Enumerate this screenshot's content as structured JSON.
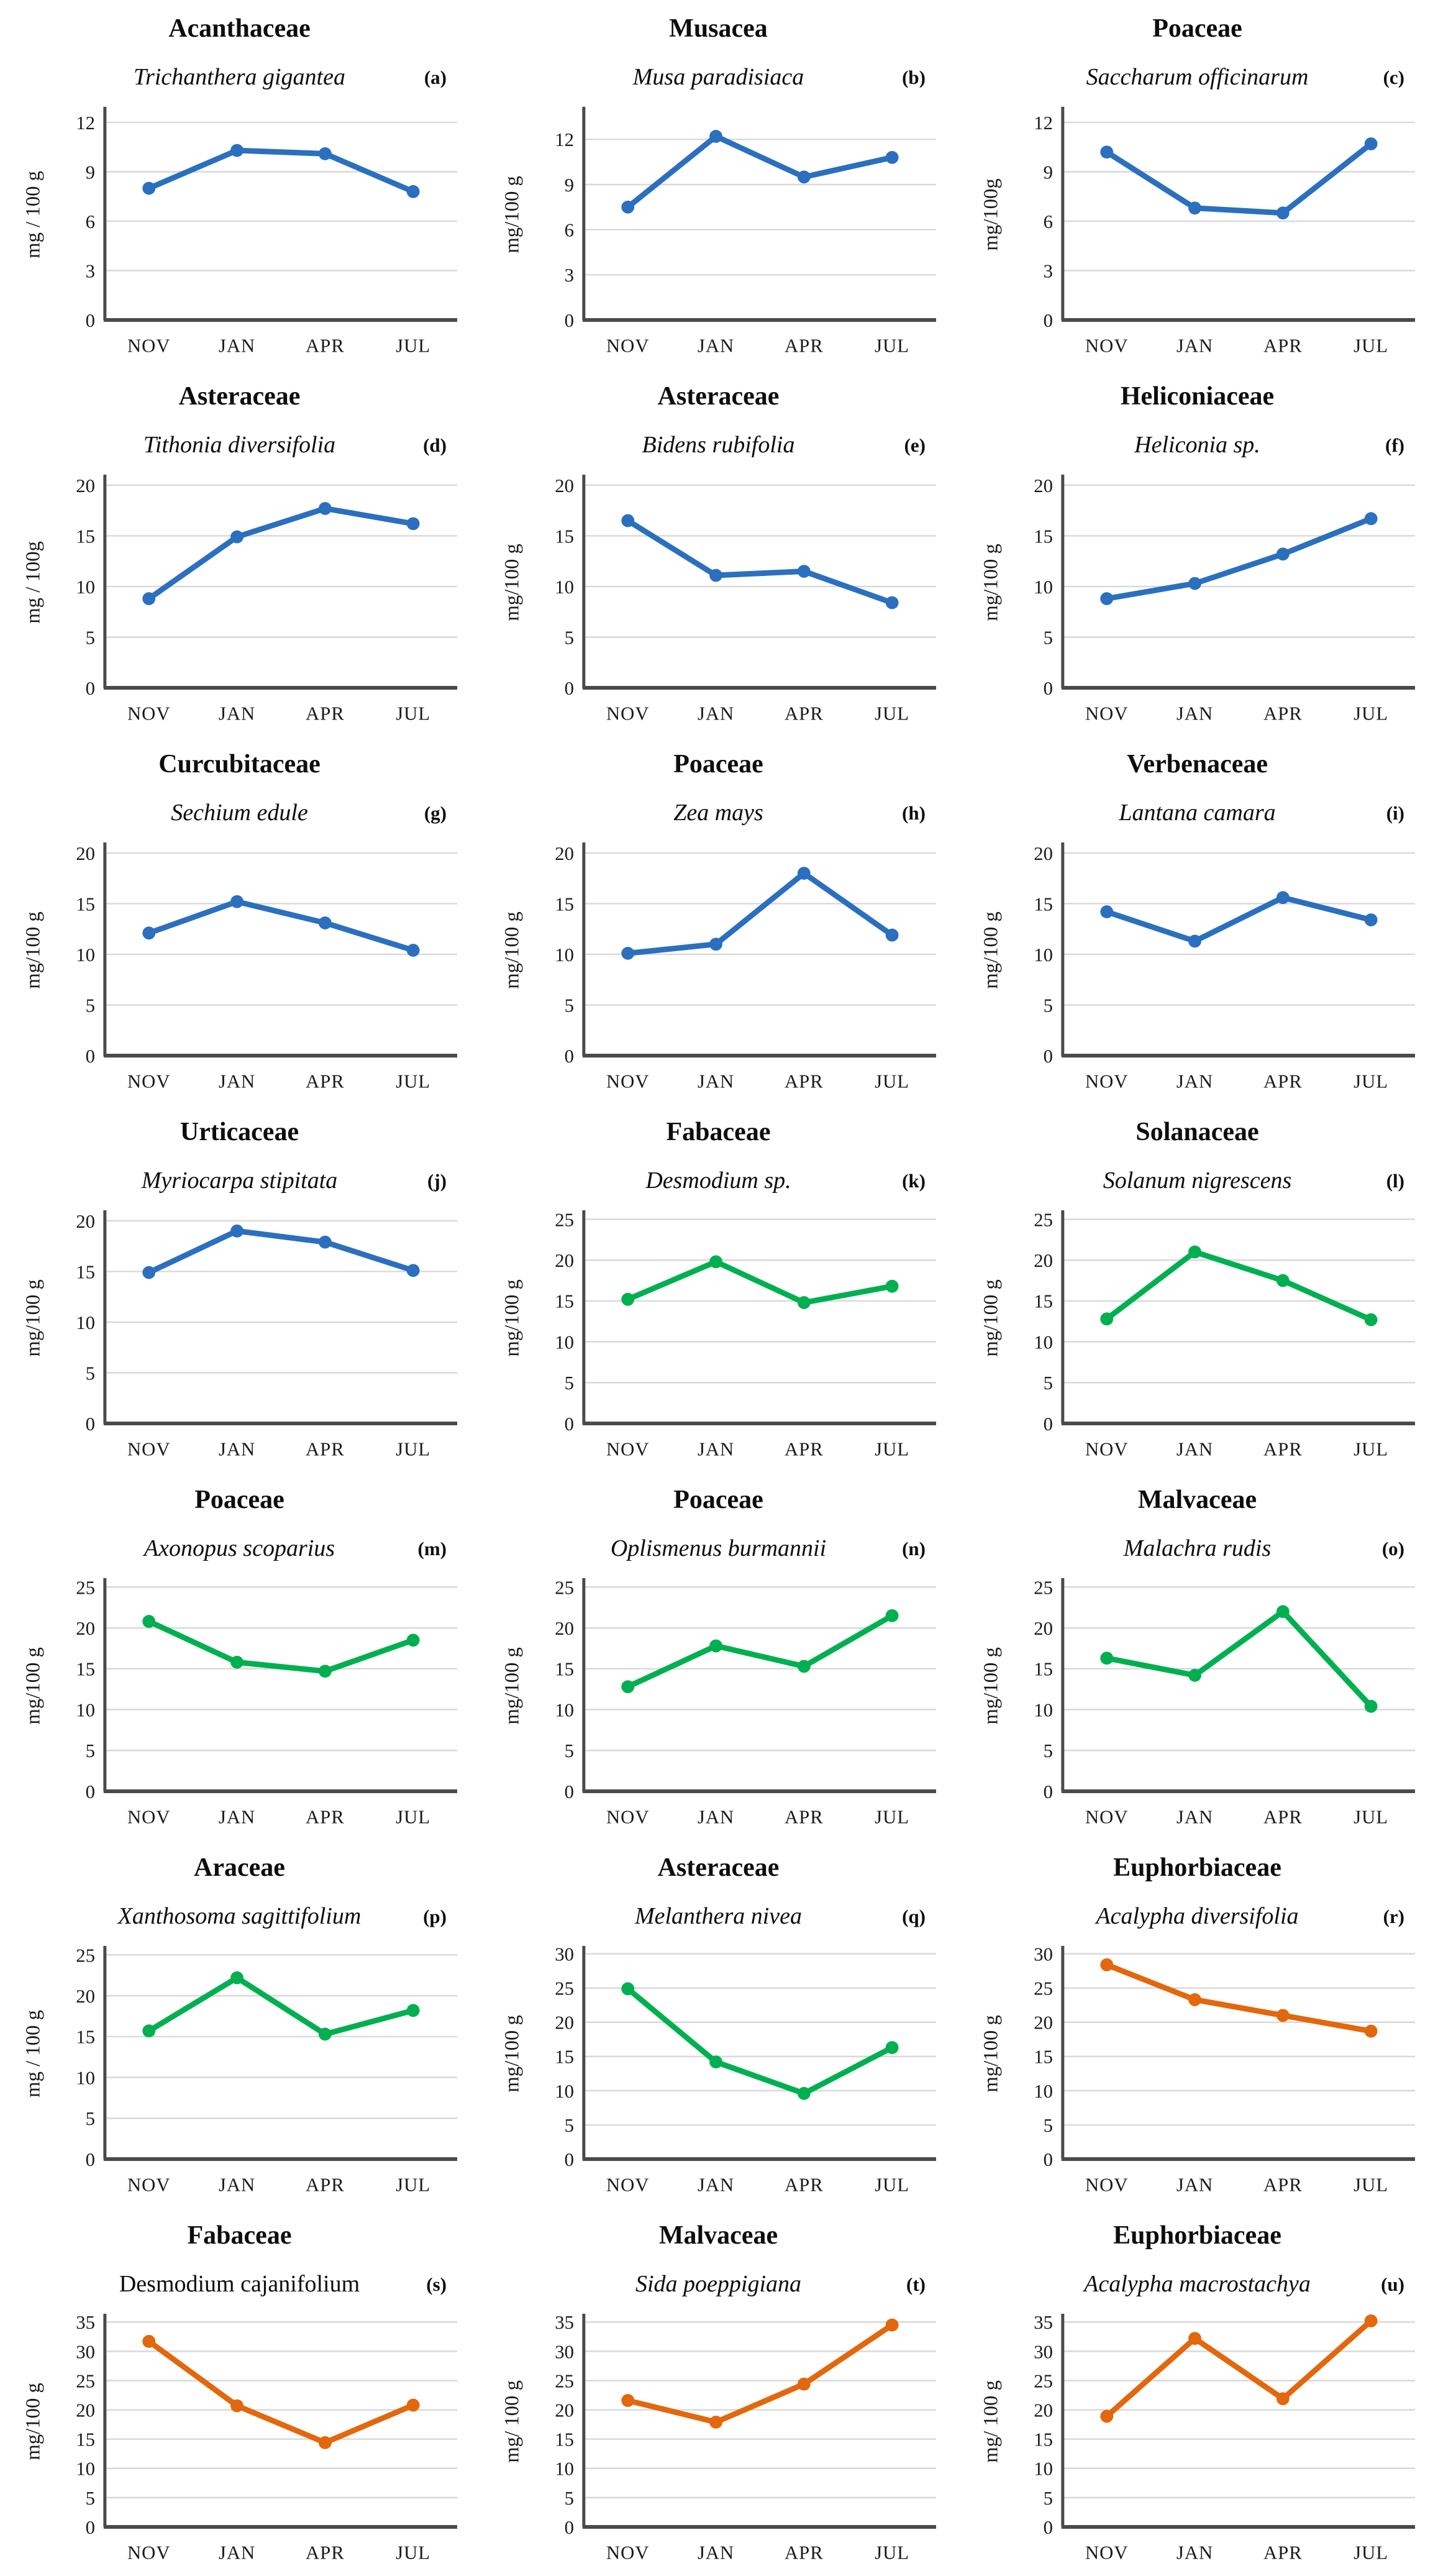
{
  "figure": {
    "x_categories": [
      "NOV",
      "JAN",
      "APR",
      "JUL"
    ],
    "palette": {
      "blue": "#2b6fbf",
      "green": "#00b050",
      "orange": "#e3670c"
    },
    "gridline_color": "#d9d9d9",
    "axis_color": "#4a4a4a"
  },
  "chart_data": [
    {
      "type": "line",
      "label": "(a)",
      "family": "Acanthaceae",
      "species": "Trichanthera gigantea",
      "species_italic": true,
      "ylabel": "mg / 100 g",
      "color": "blue",
      "categories": [
        "NOV",
        "JAN",
        "APR",
        "JUL"
      ],
      "values": [
        8.0,
        10.3,
        10.1,
        7.8
      ],
      "yticks": [
        0,
        3,
        6,
        9,
        12
      ],
      "ylim": [
        0,
        12.8
      ],
      "grid": true,
      "legend": "none"
    },
    {
      "type": "line",
      "label": "(b)",
      "family": "Musacea",
      "species": "Musa paradisiaca",
      "species_italic": true,
      "ylabel": "mg/100 g",
      "color": "blue",
      "categories": [
        "NOV",
        "JAN",
        "APR",
        "JUL"
      ],
      "values": [
        7.5,
        12.2,
        9.5,
        10.8
      ],
      "yticks": [
        0,
        3,
        6,
        9,
        12
      ],
      "ylim": [
        0,
        14
      ],
      "grid": true,
      "legend": "none"
    },
    {
      "type": "line",
      "label": "(c)",
      "family": "Poaceae",
      "species": "Saccharum officinarum",
      "species_italic": true,
      "ylabel": "mg/100g",
      "color": "blue",
      "categories": [
        "NOV",
        "JAN",
        "APR",
        "JUL"
      ],
      "values": [
        10.2,
        6.8,
        6.5,
        10.7
      ],
      "yticks": [
        0,
        3,
        6,
        9,
        12
      ],
      "ylim": [
        0,
        12.8
      ],
      "grid": true,
      "legend": "none"
    },
    {
      "type": "line",
      "label": "(d)",
      "family": "Asteraceae",
      "species": "Tithonia diversifolia",
      "species_italic": true,
      "ylabel": "mg / 100g",
      "color": "blue",
      "categories": [
        "NOV",
        "JAN",
        "APR",
        "JUL"
      ],
      "values": [
        8.8,
        14.9,
        17.7,
        16.2
      ],
      "yticks": [
        0,
        5,
        10,
        15,
        20
      ],
      "ylim": [
        0,
        20.8
      ],
      "grid": true,
      "legend": "none"
    },
    {
      "type": "line",
      "label": "(e)",
      "family": "Asteraceae",
      "species": "Bidens rubifolia",
      "species_italic": true,
      "ylabel": "mg/100 g",
      "color": "blue",
      "categories": [
        "NOV",
        "JAN",
        "APR",
        "JUL"
      ],
      "values": [
        16.5,
        11.1,
        11.5,
        8.4
      ],
      "yticks": [
        0,
        5,
        10,
        15,
        20
      ],
      "ylim": [
        0,
        20.8
      ],
      "grid": true,
      "legend": "none"
    },
    {
      "type": "line",
      "label": "(f)",
      "family": "Heliconiaceae",
      "species": "Heliconia sp.",
      "species_italic": true,
      "ylabel": "mg/100 g",
      "color": "blue",
      "categories": [
        "NOV",
        "JAN",
        "APR",
        "JUL"
      ],
      "values": [
        8.8,
        10.3,
        13.2,
        16.7
      ],
      "yticks": [
        0,
        5,
        10,
        15,
        20
      ],
      "ylim": [
        0,
        20.8
      ],
      "grid": true,
      "legend": "none"
    },
    {
      "type": "line",
      "label": "(g)",
      "family": "Curcubitaceae",
      "species": "Sechium edule",
      "species_italic": true,
      "ylabel": "mg/100 g",
      "color": "blue",
      "categories": [
        "NOV",
        "JAN",
        "APR",
        "JUL"
      ],
      "values": [
        12.1,
        15.2,
        13.1,
        10.4
      ],
      "yticks": [
        0,
        5,
        10,
        15,
        20
      ],
      "ylim": [
        0,
        20.8
      ],
      "grid": true,
      "legend": "none"
    },
    {
      "type": "line",
      "label": "(h)",
      "family": "Poaceae",
      "species": "Zea mays",
      "species_italic": true,
      "ylabel": "mg/100 g",
      "color": "blue",
      "categories": [
        "NOV",
        "JAN",
        "APR",
        "JUL"
      ],
      "values": [
        10.1,
        11.0,
        18.0,
        11.9
      ],
      "yticks": [
        0,
        5,
        10,
        15,
        20
      ],
      "ylim": [
        0,
        20.8
      ],
      "grid": true,
      "legend": "none"
    },
    {
      "type": "line",
      "label": "(i)",
      "family": "Verbenaceae",
      "species": "Lantana camara",
      "species_italic": true,
      "ylabel": "mg/100 g",
      "color": "blue",
      "categories": [
        "NOV",
        "JAN",
        "APR",
        "JUL"
      ],
      "values": [
        14.2,
        11.3,
        15.6,
        13.4
      ],
      "yticks": [
        0,
        5,
        10,
        15,
        20
      ],
      "ylim": [
        0,
        20.8
      ],
      "grid": true,
      "legend": "none"
    },
    {
      "type": "line",
      "label": "(j)",
      "family": "Urticaceae",
      "species": "Myriocarpa stipitata",
      "species_italic": true,
      "ylabel": "mg/100 g",
      "color": "blue",
      "categories": [
        "NOV",
        "JAN",
        "APR",
        "JUL"
      ],
      "values": [
        14.9,
        19.0,
        17.9,
        15.1
      ],
      "yticks": [
        0,
        5,
        10,
        15,
        20
      ],
      "ylim": [
        0,
        20.8
      ],
      "grid": true,
      "legend": "none"
    },
    {
      "type": "line",
      "label": "(k)",
      "family": "Fabaceae",
      "species": "Desmodium sp.",
      "species_italic": true,
      "ylabel": "mg/100 g",
      "color": "green",
      "categories": [
        "NOV",
        "JAN",
        "APR",
        "JUL"
      ],
      "values": [
        15.2,
        19.8,
        14.8,
        16.8
      ],
      "yticks": [
        0,
        5,
        10,
        15,
        20,
        25
      ],
      "ylim": [
        0,
        25.8
      ],
      "grid": true,
      "legend": "none"
    },
    {
      "type": "line",
      "label": "(l)",
      "family": "Solanaceae",
      "species": "Solanum nigrescens",
      "species_italic": true,
      "ylabel": "mg/100 g",
      "color": "green",
      "categories": [
        "NOV",
        "JAN",
        "APR",
        "JUL"
      ],
      "values": [
        12.8,
        21.0,
        17.5,
        12.7
      ],
      "yticks": [
        0,
        5,
        10,
        15,
        20,
        25
      ],
      "ylim": [
        0,
        25.8
      ],
      "grid": true,
      "legend": "none"
    },
    {
      "type": "line",
      "label": "(m)",
      "family": "Poaceae",
      "species": "Axonopus scoparius",
      "species_italic": true,
      "ylabel": "mg/100 g",
      "color": "green",
      "categories": [
        "NOV",
        "JAN",
        "APR",
        "JUL"
      ],
      "values": [
        20.8,
        15.8,
        14.7,
        18.5
      ],
      "yticks": [
        0,
        5,
        10,
        15,
        20,
        25
      ],
      "ylim": [
        0,
        25.8
      ],
      "grid": true,
      "legend": "none"
    },
    {
      "type": "line",
      "label": "(n)",
      "family": "Poaceae",
      "species": "Oplismenus burmannii",
      "species_italic": true,
      "ylabel": "mg/100 g",
      "color": "green",
      "categories": [
        "NOV",
        "JAN",
        "APR",
        "JUL"
      ],
      "values": [
        12.8,
        17.8,
        15.3,
        21.5
      ],
      "yticks": [
        0,
        5,
        10,
        15,
        20,
        25
      ],
      "ylim": [
        0,
        25.8
      ],
      "grid": true,
      "legend": "none"
    },
    {
      "type": "line",
      "label": "(o)",
      "family": "Malvaceae",
      "species": "Malachra rudis",
      "species_italic": true,
      "ylabel": "mg/100 g",
      "color": "green",
      "categories": [
        "NOV",
        "JAN",
        "APR",
        "JUL"
      ],
      "values": [
        16.3,
        14.2,
        22.0,
        10.4
      ],
      "yticks": [
        0,
        5,
        10,
        15,
        20,
        25
      ],
      "ylim": [
        0,
        25.8
      ],
      "grid": true,
      "legend": "none"
    },
    {
      "type": "line",
      "label": "(p)",
      "family": "Araceae",
      "species": "Xanthosoma sagittifolium",
      "species_italic": true,
      "ylabel": "mg / 100 g",
      "color": "green",
      "categories": [
        "NOV",
        "JAN",
        "APR",
        "JUL"
      ],
      "values": [
        15.7,
        22.2,
        15.3,
        18.2
      ],
      "yticks": [
        0,
        5,
        10,
        15,
        20,
        25
      ],
      "ylim": [
        0,
        25.8
      ],
      "grid": true,
      "legend": "none"
    },
    {
      "type": "line",
      "label": "(q)",
      "family": "Asteraceae",
      "species": "Melanthera nivea",
      "species_italic": true,
      "ylabel": "mg/100 g",
      "color": "green",
      "categories": [
        "NOV",
        "JAN",
        "APR",
        "JUL"
      ],
      "values": [
        24.9,
        14.2,
        9.6,
        16.3
      ],
      "yticks": [
        0,
        5,
        10,
        15,
        20,
        25,
        30
      ],
      "ylim": [
        0,
        30.8
      ],
      "grid": true,
      "legend": "none"
    },
    {
      "type": "line",
      "label": "(r)",
      "family": "Euphorbiaceae",
      "species": "Acalypha diversifolia",
      "species_italic": true,
      "ylabel": "mg/100 g",
      "color": "orange",
      "categories": [
        "NOV",
        "JAN",
        "APR",
        "JUL"
      ],
      "values": [
        28.4,
        23.3,
        21.0,
        18.7
      ],
      "yticks": [
        0,
        5,
        10,
        15,
        20,
        25,
        30
      ],
      "ylim": [
        0,
        30.8
      ],
      "grid": true,
      "legend": "none"
    },
    {
      "type": "line",
      "label": "(s)",
      "family": "Fabaceae",
      "species": "Desmodium cajanifolium",
      "species_italic": false,
      "ylabel": "mg/100 g",
      "color": "orange",
      "categories": [
        "NOV",
        "JAN",
        "APR",
        "JUL"
      ],
      "values": [
        31.7,
        20.7,
        14.4,
        20.8
      ],
      "yticks": [
        0,
        5,
        10,
        15,
        20,
        25,
        30,
        35
      ],
      "ylim": [
        0,
        36
      ],
      "grid": true,
      "legend": "none"
    },
    {
      "type": "line",
      "label": "(t)",
      "family": "Malvaceae",
      "species": "Sida poeppigiana",
      "species_italic": true,
      "ylabel": "mg/ 100 g",
      "color": "orange",
      "categories": [
        "NOV",
        "JAN",
        "APR",
        "JUL"
      ],
      "values": [
        21.6,
        17.9,
        24.4,
        34.5
      ],
      "yticks": [
        0,
        5,
        10,
        15,
        20,
        25,
        30,
        35
      ],
      "ylim": [
        0,
        36
      ],
      "grid": true,
      "legend": "none"
    },
    {
      "type": "line",
      "label": "(u)",
      "family": "Euphorbiaceae",
      "species": "Acalypha macrostachya",
      "species_italic": true,
      "ylabel": "mg/ 100 g",
      "color": "orange",
      "categories": [
        "NOV",
        "JAN",
        "APR",
        "JUL"
      ],
      "values": [
        18.9,
        32.2,
        21.9,
        35.2
      ],
      "yticks": [
        0,
        5,
        10,
        15,
        20,
        25,
        30,
        35
      ],
      "ylim": [
        0,
        36
      ],
      "grid": true,
      "legend": "none"
    }
  ]
}
